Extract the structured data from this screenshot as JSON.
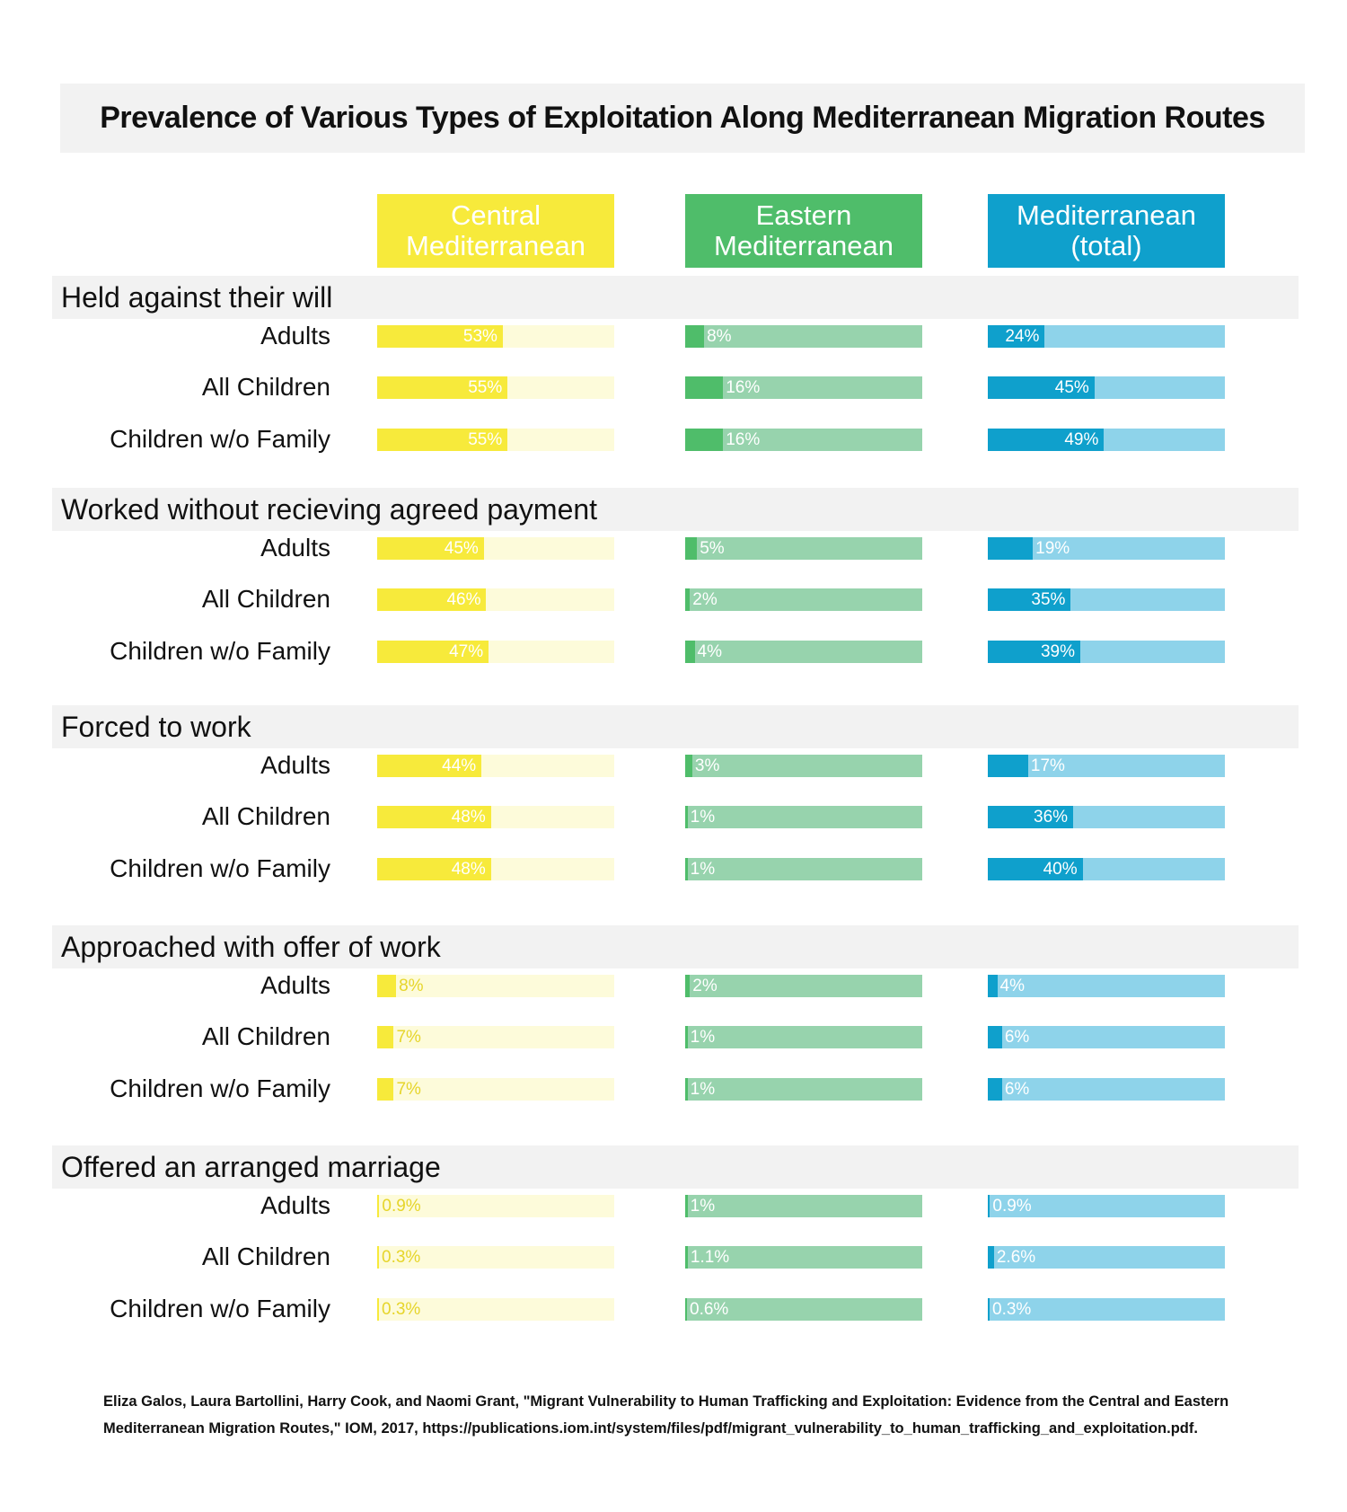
{
  "title": "Prevalence of Various Types of Exploitation Along Mediterranean Migration Routes",
  "columns": [
    {
      "label": "Central\nMediterranean",
      "color_dark": "#f7ea3b",
      "color_light": "#fdfbda",
      "value_text_color": "#ffffff"
    },
    {
      "label": "Eastern\nMediterranean",
      "color_dark": "#4fbd6a",
      "color_light": "#97d3ad",
      "value_text_color": "#ffffff"
    },
    {
      "label": "Mediterranean\n(total)",
      "color_dark": "#0fa0cc",
      "color_light": "#8ed3ea",
      "value_text_color": "#ffffff"
    }
  ],
  "chart_data": {
    "type": "bar",
    "orientation": "horizontal",
    "xlim": [
      0,
      100
    ],
    "groups": [
      {
        "category": "Held against their will",
        "rows": [
          {
            "label": "Adults",
            "values": [
              53,
              8,
              24
            ],
            "labels": [
              "53%",
              "8%",
              "24%"
            ]
          },
          {
            "label": "All Children",
            "values": [
              55,
              16,
              45
            ],
            "labels": [
              "55%",
              "16%",
              "45%"
            ]
          },
          {
            "label": "Children w/o Family",
            "values": [
              55,
              16,
              49
            ],
            "labels": [
              "55%",
              "16%",
              "49%"
            ]
          }
        ]
      },
      {
        "category": "Worked without recieving agreed payment",
        "rows": [
          {
            "label": "Adults",
            "values": [
              45,
              5,
              19
            ],
            "labels": [
              "45%",
              "5%",
              "19%"
            ]
          },
          {
            "label": "All Children",
            "values": [
              46,
              2,
              35
            ],
            "labels": [
              "46%",
              "2%",
              "35%"
            ]
          },
          {
            "label": "Children w/o Family",
            "values": [
              47,
              4,
              39
            ],
            "labels": [
              "47%",
              "4%",
              "39%"
            ]
          }
        ]
      },
      {
        "category": "Forced to work",
        "rows": [
          {
            "label": "Adults",
            "values": [
              44,
              3,
              17
            ],
            "labels": [
              "44%",
              "3%",
              "17%"
            ]
          },
          {
            "label": "All Children",
            "values": [
              48,
              1,
              36
            ],
            "labels": [
              "48%",
              "1%",
              "36%"
            ]
          },
          {
            "label": "Children w/o Family",
            "values": [
              48,
              1,
              40
            ],
            "labels": [
              "48%",
              "1%",
              "40%"
            ]
          }
        ]
      },
      {
        "category": "Approached with offer of work",
        "rows": [
          {
            "label": "Adults",
            "values": [
              8,
              2,
              4
            ],
            "labels": [
              "8%",
              "2%",
              "4%"
            ]
          },
          {
            "label": "All Children",
            "values": [
              7,
              1,
              6
            ],
            "labels": [
              "7%",
              "1%",
              "6%"
            ]
          },
          {
            "label": "Children w/o Family",
            "values": [
              7,
              1,
              6
            ],
            "labels": [
              "7%",
              "1%",
              "6%"
            ]
          }
        ]
      },
      {
        "category": "Offered an arranged marriage",
        "rows": [
          {
            "label": "Adults",
            "values": [
              0.9,
              1,
              0.9
            ],
            "labels": [
              "0.9%",
              "1%",
              "0.9%"
            ]
          },
          {
            "label": "All Children",
            "values": [
              0.3,
              1.1,
              2.6
            ],
            "labels": [
              "0.3%",
              "1.1%",
              "2.6%"
            ]
          },
          {
            "label": "Children w/o Family",
            "values": [
              0.3,
              0.6,
              0.3
            ],
            "labels": [
              "0.3%",
              "0.6%",
              "0.3%"
            ]
          }
        ]
      }
    ]
  },
  "source": "Eliza Galos, Laura Bartollini, Harry Cook, and Naomi Grant, \"Migrant Vulnerability to Human Trafficking and Exploitation: Evidence from the Central and Eastern Mediterranean Migration Routes,\" IOM, 2017, https://publications.iom.int/system/files/pdf/migrant_vulnerability_to_human_trafficking_and_exploitation.pdf."
}
